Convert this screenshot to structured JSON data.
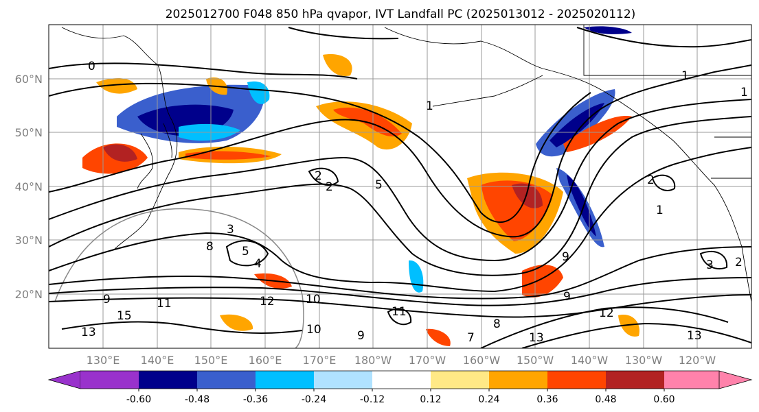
{
  "title": "2025012700 F048 850 hPa qvapor, IVT Landfall PC (2025013012 - 2025020112)",
  "map": {
    "lat_labels": [
      "60°N",
      "50°N",
      "40°N",
      "30°N",
      "20°N"
    ],
    "lon_labels": [
      "130°E",
      "140°E",
      "150°E",
      "160°E",
      "170°E",
      "180°W",
      "170°W",
      "160°W",
      "150°W",
      "140°W",
      "130°W",
      "120°W"
    ],
    "contour_labels": [
      "0",
      "1",
      "2",
      "2",
      "5",
      "1",
      "3",
      "5",
      "4",
      "8",
      "9",
      "10",
      "11",
      "12",
      "13",
      "15",
      "9",
      "11",
      "10",
      "9",
      "8",
      "7",
      "9",
      "13",
      "12",
      "13",
      "2",
      "1",
      "3",
      "2",
      "1"
    ]
  },
  "colorbar": {
    "colors": [
      "#9932cc",
      "#00008b",
      "#3a5fcd",
      "#00bfff",
      "#b0e2ff",
      "#ffffff",
      "#ffe986",
      "#ffa500",
      "#ff4500",
      "#b22222",
      "#ff82ab"
    ],
    "tick_labels": [
      "-0.60",
      "-0.48",
      "-0.36",
      "-0.24",
      "-0.12",
      "0.12",
      "0.24",
      "0.36",
      "0.48",
      "0.60"
    ]
  }
}
